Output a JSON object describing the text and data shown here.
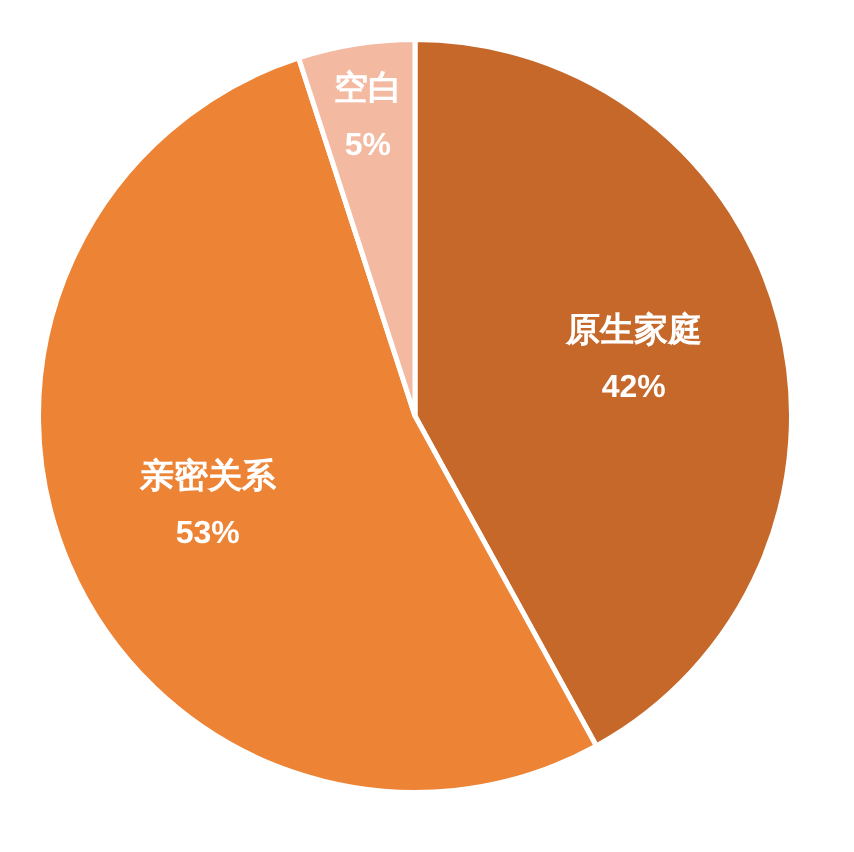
{
  "chart_data": {
    "type": "pie",
    "categories": [
      "原生家庭",
      "亲密关系",
      "空白"
    ],
    "values": [
      42,
      53,
      5
    ],
    "colors": [
      "#c5682a",
      "#ed8335",
      "#f4b9a1"
    ],
    "value_labels": [
      "42%",
      "53%",
      "5%"
    ],
    "legend": false
  }
}
